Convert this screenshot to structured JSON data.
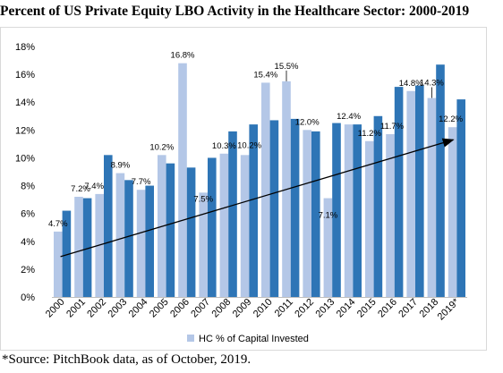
{
  "title": "Percent of US Private Equity LBO Activity in the Healthcare Sector: 2000-2019",
  "source": "*Source: PitchBook data, as of October, 2019.",
  "chart_data": {
    "type": "bar",
    "title": "Percent of US Private Equity LBO Activity in the Healthcare Sector: 2000-2019",
    "xlabel": "",
    "ylabel": "",
    "ylim": [
      0,
      18
    ],
    "yticks": [
      "0%",
      "2%",
      "4%",
      "6%",
      "8%",
      "10%",
      "12%",
      "14%",
      "16%",
      "18%"
    ],
    "grid": false,
    "legend_position": "bottom",
    "categories": [
      "2000",
      "2001",
      "2002",
      "2003",
      "2004",
      "2005",
      "2006",
      "2007",
      "2008",
      "2009",
      "2010",
      "2011",
      "2012",
      "2013",
      "2014",
      "2015",
      "2016",
      "2017",
      "2018",
      "2019*"
    ],
    "series": [
      {
        "name": "HC % of Capital Invested",
        "color": "#b4c7e7",
        "values": [
          4.7,
          7.2,
          7.4,
          8.9,
          7.7,
          10.2,
          16.8,
          7.5,
          10.3,
          10.2,
          15.4,
          15.5,
          12.0,
          7.1,
          12.4,
          11.2,
          11.7,
          14.8,
          14.3,
          12.2
        ],
        "labels": [
          "4.7%",
          "7.2%",
          "7.4%",
          "8.9%",
          "7.7%",
          "10.2%",
          "16.8%",
          "7.5%",
          "10.3%",
          "10.2%",
          "15.4%",
          "15.5%",
          "12.0%",
          "7.1%",
          "12.4%",
          "11.2%",
          "11.7%",
          "14.8%",
          "14.3%",
          "12.2%"
        ]
      },
      {
        "name": "",
        "color": "#2e75b6",
        "values": [
          6.2,
          7.1,
          10.2,
          8.4,
          8.0,
          9.6,
          9.3,
          10.0,
          11.9,
          12.4,
          12.7,
          12.8,
          11.9,
          12.5,
          12.4,
          13.0,
          15.1,
          15.2,
          16.7,
          14.2
        ]
      }
    ],
    "trendline": {
      "from": 2.9,
      "to": 11.3,
      "color": "#000000"
    }
  }
}
